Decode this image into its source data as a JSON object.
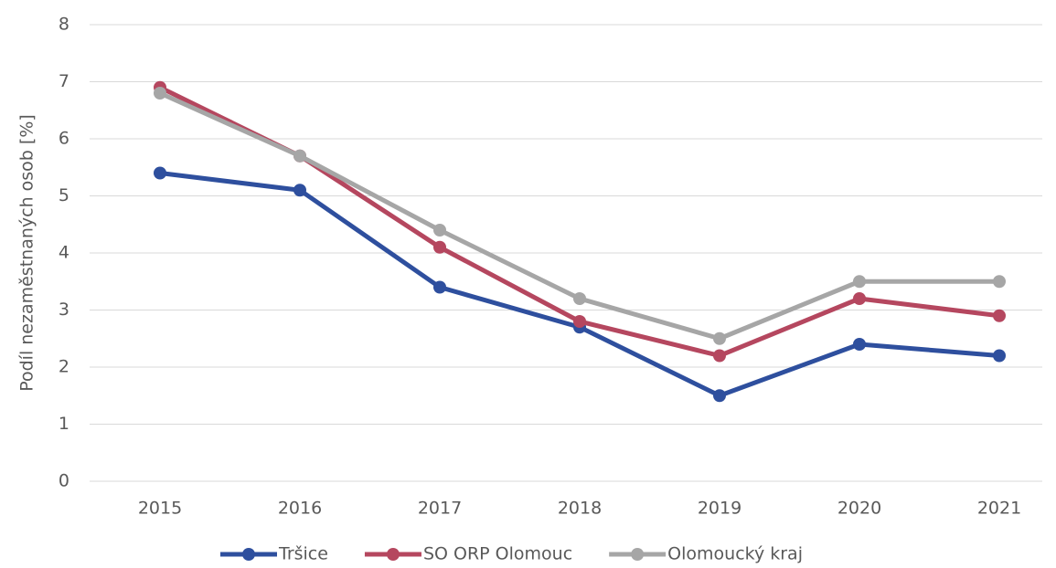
{
  "chart_data": {
    "type": "line",
    "y_label": "Podíl nezaměstnaných osob  [%]",
    "categories": [
      "2015",
      "2016",
      "2017",
      "2018",
      "2019",
      "2020",
      "2021"
    ],
    "series": [
      {
        "name": "Tršice",
        "color": "#2e4f9e",
        "values": [
          5.4,
          5.1,
          3.4,
          2.7,
          1.5,
          2.4,
          2.2
        ]
      },
      {
        "name": "SO ORP Olomouc",
        "color": "#b5475f",
        "values": [
          6.9,
          5.7,
          4.1,
          2.8,
          2.2,
          3.2,
          2.9
        ]
      },
      {
        "name": "Olomoucký kraj",
        "color": "#a6a6a6",
        "values": [
          6.8,
          5.7,
          4.4,
          3.2,
          2.5,
          3.5,
          3.5
        ]
      }
    ],
    "ylim": [
      0,
      8
    ],
    "yticks": [
      0,
      1,
      2,
      3,
      4,
      5,
      6,
      7,
      8
    ],
    "grid": true,
    "legend": "bottom"
  }
}
